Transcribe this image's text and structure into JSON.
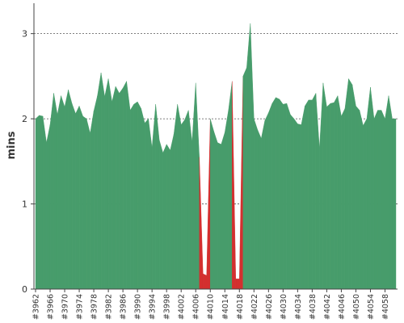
{
  "chart_data": {
    "type": "area",
    "title": "",
    "xlabel": "",
    "ylabel": "mins",
    "ylim": [
      0,
      3.3
    ],
    "yticks": [
      0,
      1,
      2,
      3
    ],
    "grid": "horizontal-dashed",
    "legend": "none",
    "colors": {
      "normal": "#479c6b",
      "alert": "#d32f2f",
      "grid": "#555555",
      "axis": "#444444"
    },
    "x": [
      "#3962",
      "#3963",
      "#3964",
      "#3965",
      "#3966",
      "#3967",
      "#3968",
      "#3969",
      "#3970",
      "#3971",
      "#3972",
      "#3973",
      "#3974",
      "#3975",
      "#3976",
      "#3977",
      "#3978",
      "#3979",
      "#3980",
      "#3981",
      "#3982",
      "#3983",
      "#3984",
      "#3985",
      "#3986",
      "#3987",
      "#3988",
      "#3989",
      "#3990",
      "#3991",
      "#3992",
      "#3993",
      "#3994",
      "#3995",
      "#3996",
      "#3997",
      "#3998",
      "#3999",
      "#4000",
      "#4001",
      "#4002",
      "#4003",
      "#4004",
      "#4005",
      "#4006",
      "#4007",
      "#4008",
      "#4009",
      "#4010",
      "#4011",
      "#4012",
      "#4013",
      "#4014",
      "#4015",
      "#4016",
      "#4017",
      "#4018",
      "#4019",
      "#4020",
      "#4021",
      "#4022",
      "#4023",
      "#4024",
      "#4025",
      "#4026",
      "#4027",
      "#4028",
      "#4029",
      "#4030",
      "#4031",
      "#4032",
      "#4033",
      "#4034",
      "#4035",
      "#4036",
      "#4037",
      "#4038",
      "#4039",
      "#4040",
      "#4041",
      "#4042",
      "#4043",
      "#4044",
      "#4045",
      "#4046",
      "#4047",
      "#4048",
      "#4049",
      "#4050",
      "#4051",
      "#4052",
      "#4053",
      "#4054",
      "#4055",
      "#4056",
      "#4057",
      "#4058",
      "#4059",
      "#4060",
      "#4061"
    ],
    "xticks": [
      "#3962",
      "#3966",
      "#3970",
      "#3974",
      "#3978",
      "#3982",
      "#3986",
      "#3990",
      "#3994",
      "#3998",
      "#4002",
      "#4006",
      "#4010",
      "#4014",
      "#4018",
      "#4022",
      "#4026",
      "#4030",
      "#4034",
      "#4038",
      "#4042",
      "#4046",
      "#4050",
      "#4054",
      "#4058"
    ],
    "values": [
      2.0,
      2.04,
      2.03,
      1.72,
      1.93,
      2.3,
      2.05,
      2.27,
      2.14,
      2.34,
      2.18,
      2.06,
      2.15,
      2.03,
      2.0,
      1.83,
      2.09,
      2.27,
      2.54,
      2.26,
      2.47,
      2.2,
      2.38,
      2.3,
      2.36,
      2.44,
      2.1,
      2.17,
      2.2,
      2.12,
      1.95,
      2.0,
      1.66,
      2.17,
      1.75,
      1.6,
      1.7,
      1.63,
      1.82,
      2.17,
      1.93,
      1.99,
      2.1,
      1.73,
      2.42,
      1.55,
      0.18,
      0.16,
      2.0,
      1.85,
      1.72,
      1.7,
      1.84,
      2.1,
      2.44,
      0.12,
      0.12,
      2.5,
      2.6,
      3.12,
      2.0,
      1.87,
      1.77,
      1.98,
      2.07,
      2.18,
      2.25,
      2.23,
      2.17,
      2.18,
      2.05,
      2.0,
      1.94,
      1.93,
      2.15,
      2.22,
      2.22,
      2.3,
      1.65,
      2.42,
      2.14,
      2.18,
      2.19,
      2.27,
      2.03,
      2.12,
      2.47,
      2.4,
      2.15,
      2.1,
      1.92,
      2.0,
      2.37,
      2.0,
      2.1,
      2.1,
      2.0,
      2.27,
      2.0,
      2.0
    ],
    "alert_threshold": 0.5
  }
}
